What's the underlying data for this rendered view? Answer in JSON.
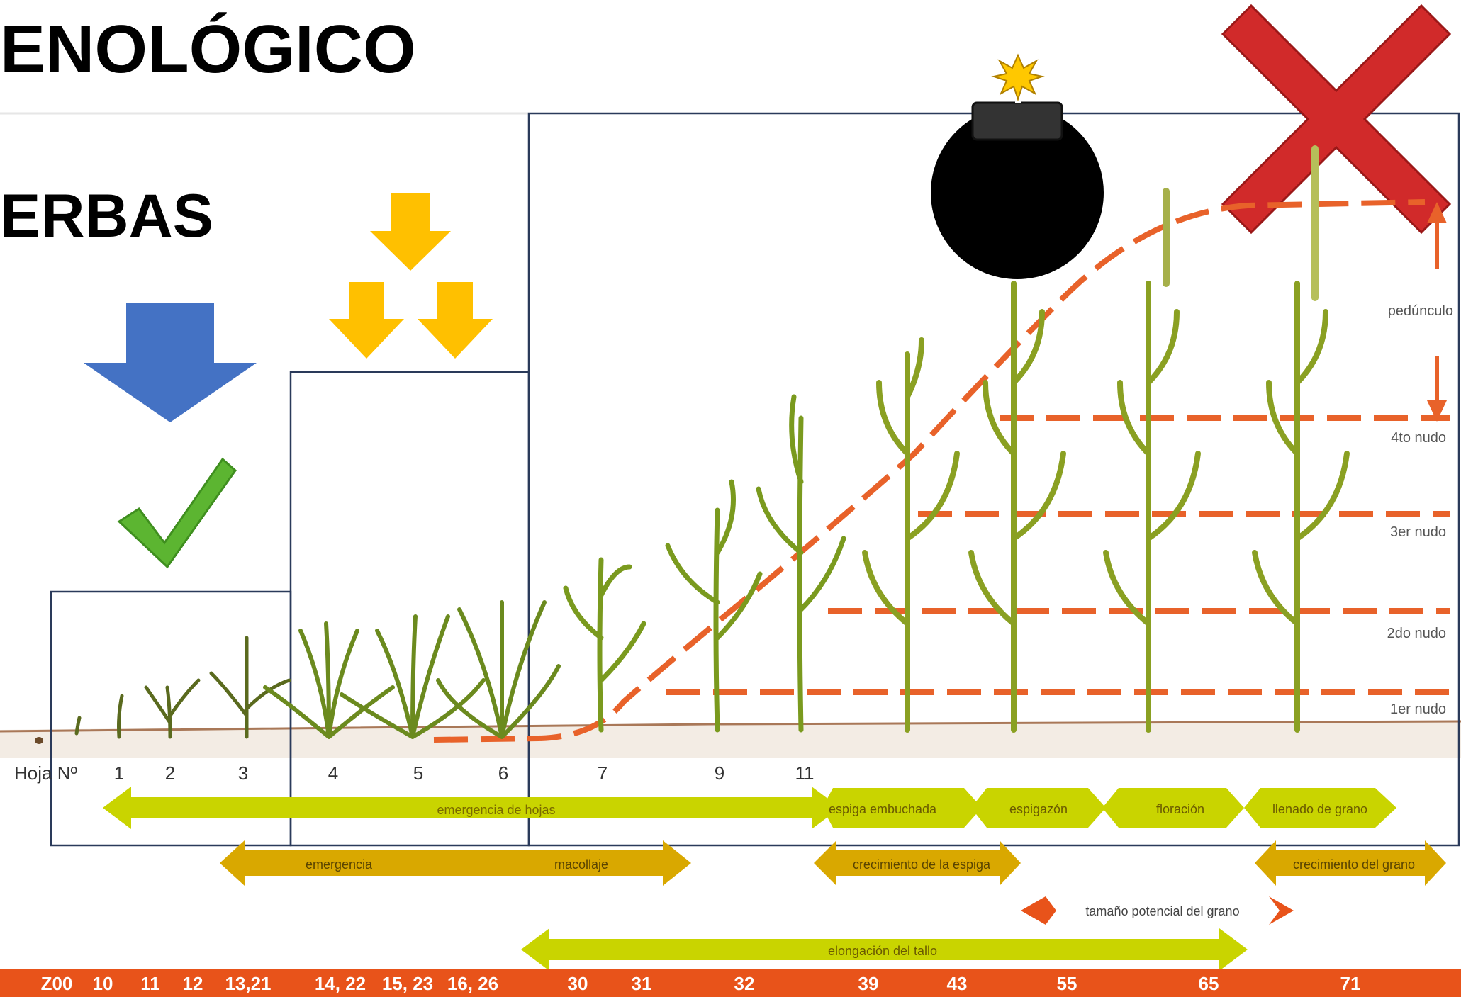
{
  "titles": {
    "line1": "ENOLÓGICO",
    "line2": "ERBAS"
  },
  "leaf_label": "Hoja Nº",
  "leaf_numbers": [
    "1",
    "2",
    "3",
    "4",
    "5",
    "6",
    "7",
    "9",
    "11"
  ],
  "node_labels": {
    "peduncle": "pedúnculo",
    "node4": "4to nudo",
    "node3": "3er nudo",
    "node2": "2do nudo",
    "node1": "1er nudo"
  },
  "stage_bars": {
    "leaf_emergence": "emergencia de hojas",
    "boot": "espiga embuchada",
    "heading": "espigazón",
    "flowering": "floración",
    "grain_fill": "llenado de grano",
    "emergence": "emergencia",
    "tillering": "macollaje",
    "spike_growth": "crecimiento de la espiga",
    "grain_growth": "crecimiento del grano",
    "grain_potential": "tamaño potencial del grano",
    "stem_elongation": "elongación del tallo"
  },
  "zadoks": [
    "Z00",
    "10",
    "11",
    "12",
    "13,21",
    "14, 22",
    "15, 23",
    "16, 26",
    "30",
    "31",
    "32",
    "39",
    "43",
    "55",
    "65",
    "71"
  ],
  "icons": [
    "down-arrow-icon",
    "check-icon",
    "bomb-icon",
    "cross-icon"
  ],
  "colors": {
    "blue_arrow": "#4472c4",
    "yellow_arrow": "#ffc000",
    "check": "#5cb531",
    "cross": "#d12a2a",
    "dash": "#e8622a",
    "zadoks_bar": "#e8531a",
    "green_bar": "#c9d400",
    "gold_bar": "#d9a800"
  }
}
